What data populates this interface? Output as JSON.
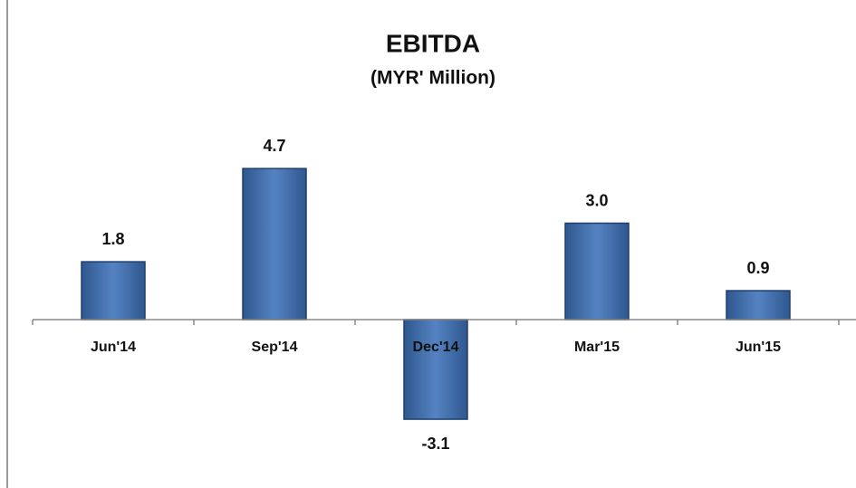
{
  "chart_data": {
    "type": "bar",
    "title": "EBITDA",
    "subtitle": "(MYR' Million)",
    "categories": [
      "Jun'14",
      "Sep'14",
      "Dec'14",
      "Mar'15",
      "Jun'15"
    ],
    "values": [
      1.8,
      4.7,
      -3.1,
      3.0,
      0.9
    ],
    "value_labels": [
      "1.8",
      "4.7",
      "-3.1",
      "3.0",
      "0.9"
    ],
    "color": "#4a74b0",
    "ylim": [
      -4,
      5
    ]
  }
}
